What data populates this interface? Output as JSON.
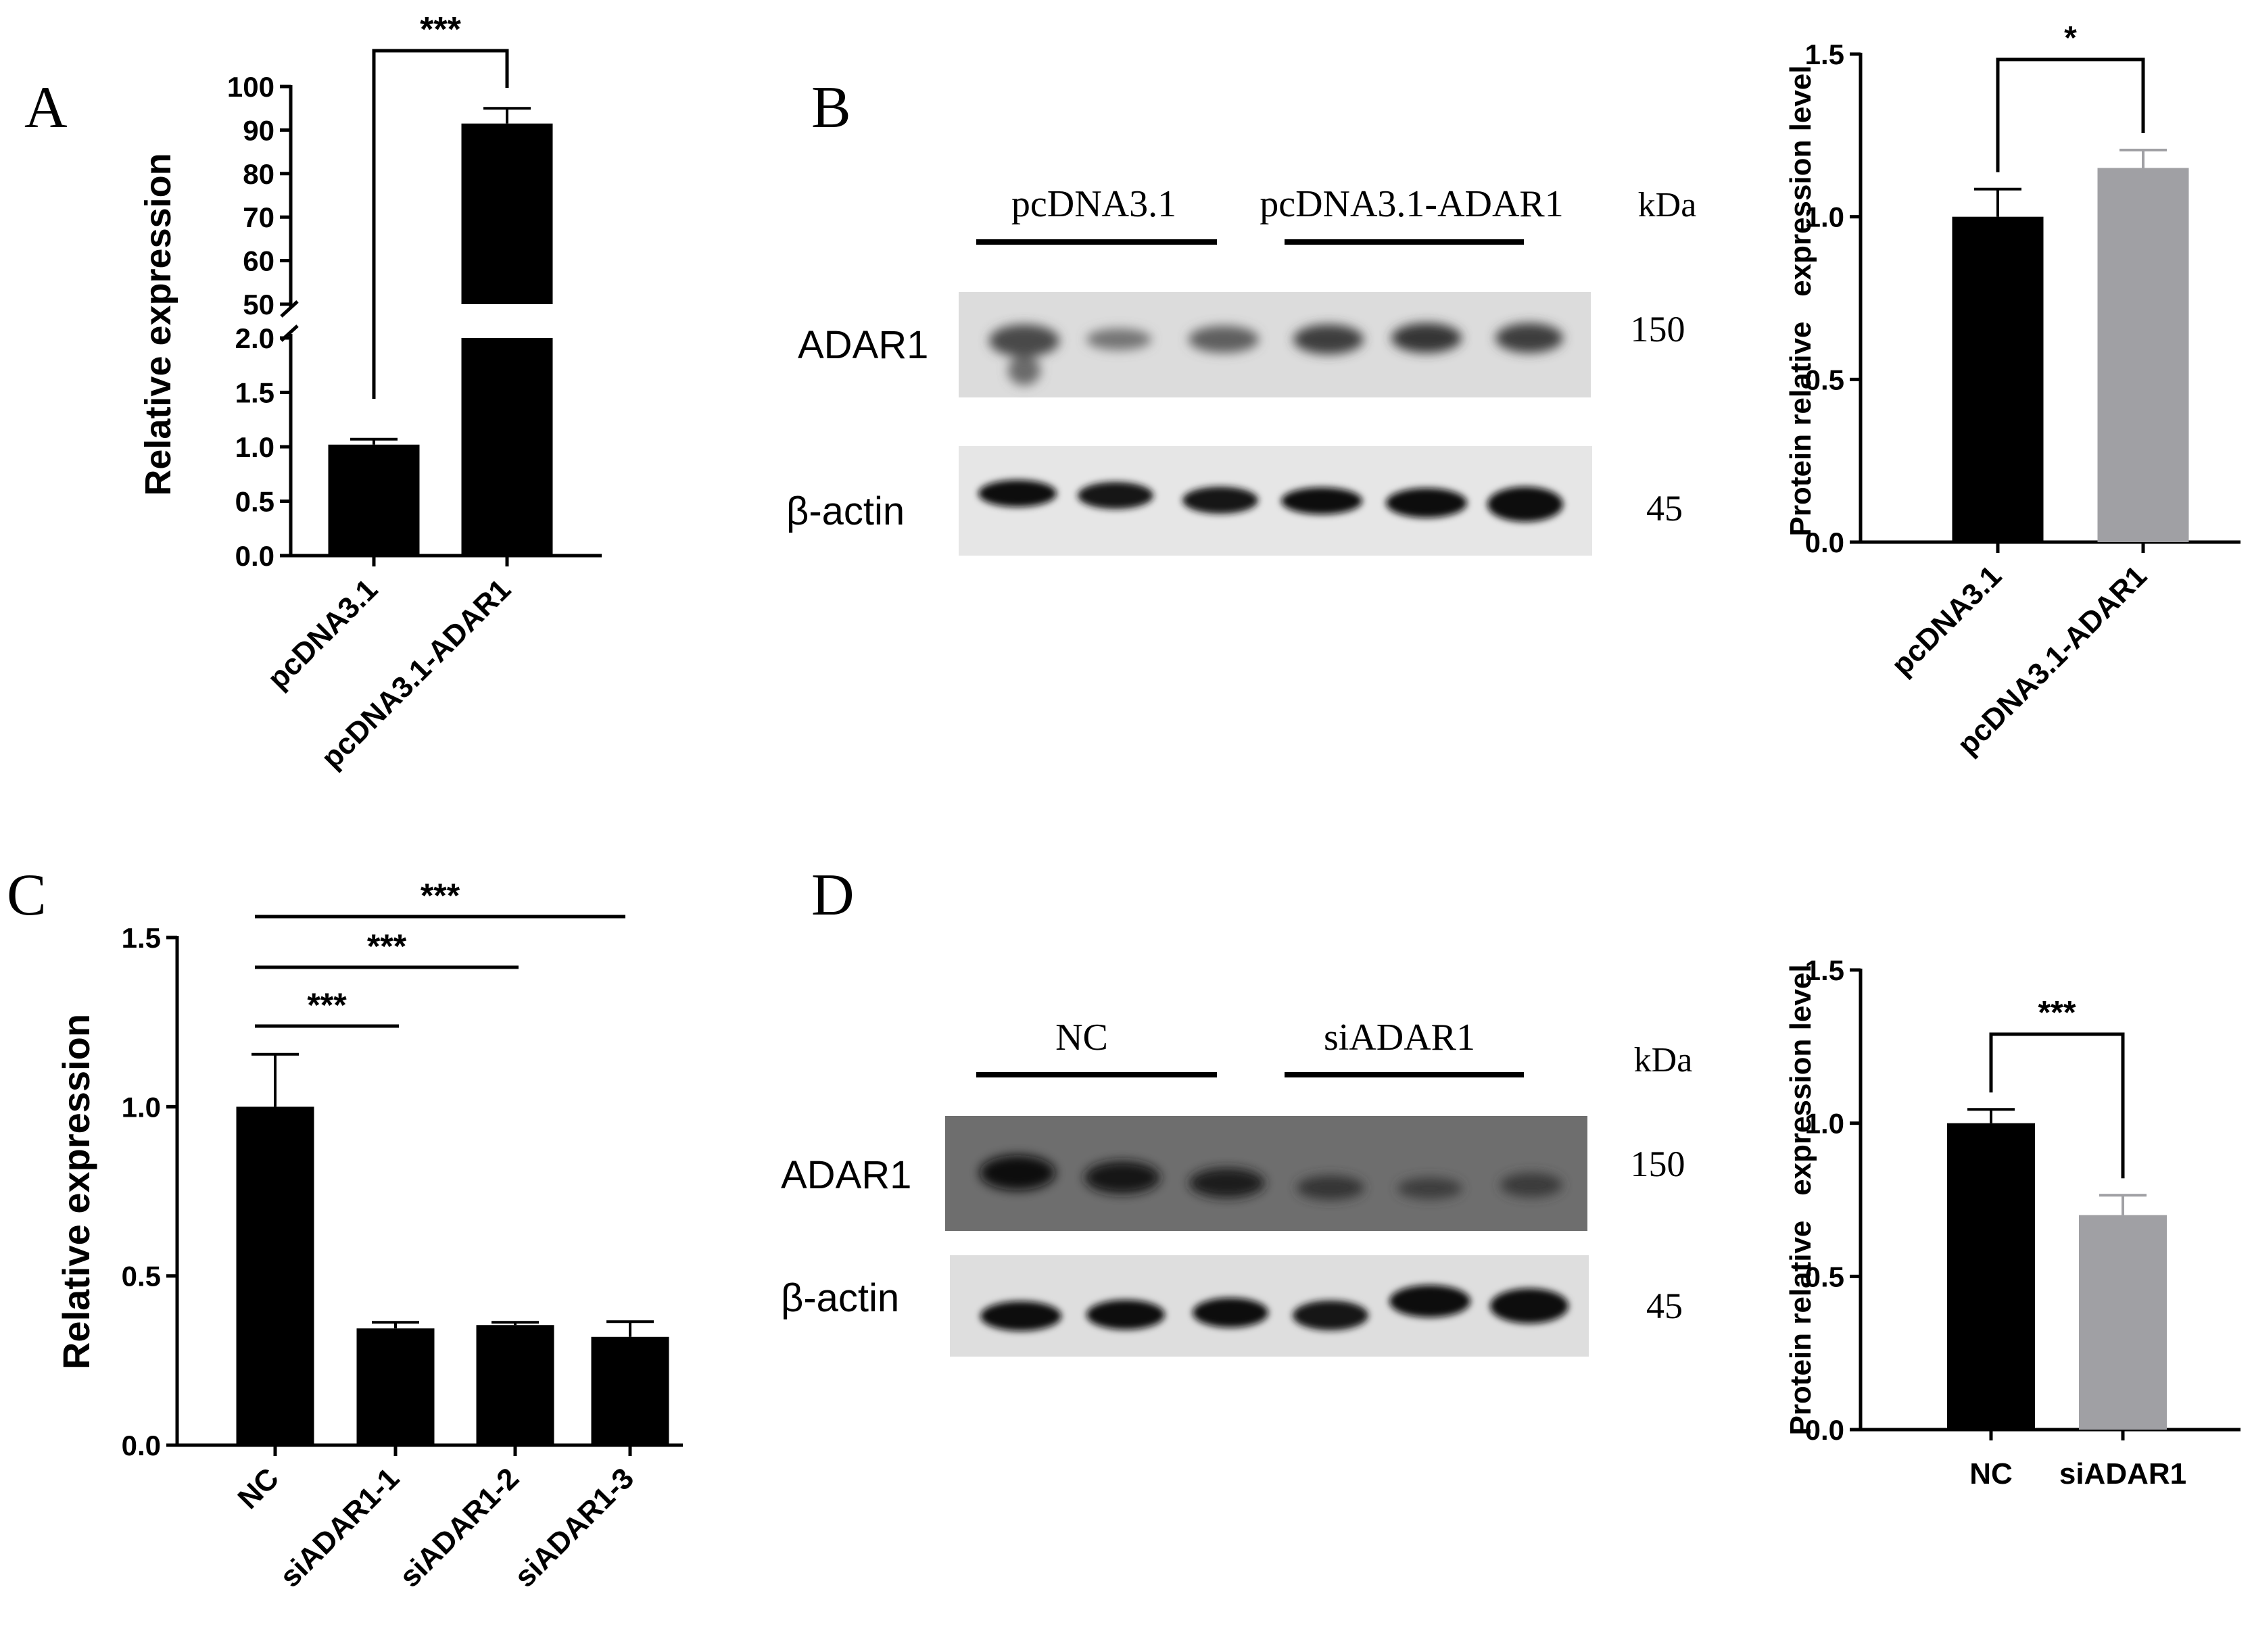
{
  "panels": {
    "A": {
      "letter": "A"
    },
    "B": {
      "letter": "B"
    },
    "C": {
      "letter": "C"
    },
    "D": {
      "letter": "D"
    }
  },
  "blots": {
    "B": {
      "group_labels": [
        "pcDNA3.1",
        "pcDNA3.1-ADAR1"
      ],
      "kda_label": "kDa",
      "rows": [
        {
          "name": "ADAR1",
          "kda": "150"
        },
        {
          "name": "β-actin",
          "kda": "45"
        }
      ]
    },
    "D": {
      "group_labels": [
        "NC",
        "siADAR1"
      ],
      "kda_label": "kDa",
      "rows": [
        {
          "name": "ADAR1",
          "kda": "150"
        },
        {
          "name": "β-actin",
          "kda": "45"
        }
      ]
    }
  },
  "chart_data": [
    {
      "id": "A",
      "type": "bar",
      "ylabel": "Relative expression",
      "categories": [
        "pcDNA3.1",
        "pcDNA3.1-ADAR1"
      ],
      "values": [
        1.02,
        91.5
      ],
      "errors": [
        0.05,
        3.5
      ],
      "colors": [
        "#000000",
        "#000000"
      ],
      "axis_break": {
        "lower": [
          0,
          2.0
        ],
        "upper": [
          50,
          100
        ]
      },
      "yticks_lower": [
        "0.0",
        "0.5",
        "1.0",
        "1.5",
        "2.0"
      ],
      "yticks_upper": [
        "50",
        "60",
        "70",
        "80",
        "90",
        "100"
      ],
      "significance": [
        {
          "from": 0,
          "to": 1,
          "label": "***"
        }
      ]
    },
    {
      "id": "B",
      "type": "bar",
      "ylabel": "Protein relative   expression level",
      "categories": [
        "pcDNA3.1",
        "pcDNA3.1-ADAR1"
      ],
      "values": [
        1.0,
        1.15
      ],
      "errors": [
        0.085,
        0.055
      ],
      "colors": [
        "#000000",
        "#a0a0a4"
      ],
      "ylim": [
        0,
        1.5
      ],
      "yticks": [
        "0.0",
        "0.5",
        "1.0",
        "1.5"
      ],
      "significance": [
        {
          "from": 0,
          "to": 1,
          "label": "*"
        }
      ]
    },
    {
      "id": "C",
      "type": "bar",
      "ylabel": "Relative expression",
      "categories": [
        "NC",
        "siADAR1-1",
        "siADAR1-2",
        "siADAR1-3"
      ],
      "values": [
        1.0,
        0.345,
        0.355,
        0.32
      ],
      "errors": [
        0.155,
        0.018,
        0.008,
        0.045
      ],
      "colors": [
        "#000000",
        "#000000",
        "#000000",
        "#000000"
      ],
      "ylim": [
        0,
        1.5
      ],
      "yticks": [
        "0.0",
        "0.5",
        "1.0",
        "1.5"
      ],
      "significance": [
        {
          "from": 0,
          "to": 1,
          "label": "***"
        },
        {
          "from": 0,
          "to": 2,
          "label": "***"
        },
        {
          "from": 0,
          "to": 3,
          "label": "***"
        }
      ]
    },
    {
      "id": "D",
      "type": "bar",
      "ylabel": "Protein relative   expression level",
      "categories": [
        "NC",
        "siADAR1"
      ],
      "values": [
        1.0,
        0.7
      ],
      "errors": [
        0.045,
        0.065
      ],
      "colors": [
        "#000000",
        "#a0a0a4"
      ],
      "ylim": [
        0,
        1.5
      ],
      "yticks": [
        "0.0",
        "0.5",
        "1.0",
        "1.5"
      ],
      "significance": [
        {
          "from": 0,
          "to": 1,
          "label": "***"
        }
      ]
    }
  ]
}
